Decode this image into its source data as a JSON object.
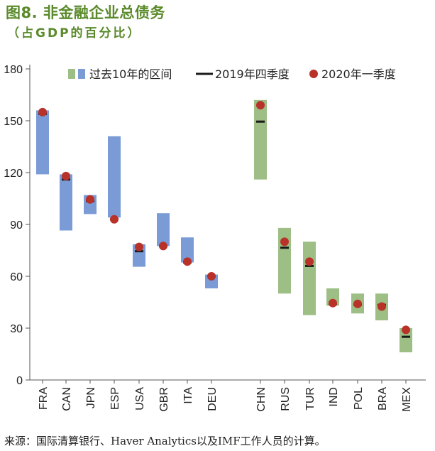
{
  "header": {
    "title": "图8. 非金融企业总债务",
    "subtitle": "（占GDP的百分比）"
  },
  "footer": {
    "source": "来源：国际清算银行、Haver Analytics以及IMF工作人员的计算。"
  },
  "colors": {
    "advanced": "#7b9bd6",
    "emerging": "#9dbe84",
    "marker_2019": "#1a1a1a",
    "marker_2020": "#b8322a",
    "title": "#5a8a2b"
  },
  "chart_data": {
    "type": "range-bar",
    "title": "非金融企业总债务",
    "ylabel": "占GDP的百分比",
    "ylim": [
      0,
      180
    ],
    "yticks": [
      0,
      30,
      60,
      90,
      120,
      150,
      180
    ],
    "legend": {
      "range": "过去10年的区间",
      "q4_2019": "2019年四季度",
      "q1_2020": "2020年一季度",
      "placement": "top"
    },
    "groups": [
      {
        "name": "advanced",
        "categories": [
          "FRA",
          "CAN",
          "JPN",
          "ESP",
          "USA",
          "GBR",
          "ITA",
          "DEU"
        ],
        "range_low": [
          119,
          86.5,
          96,
          94,
          65.5,
          77.5,
          68,
          53
        ],
        "range_high": [
          156,
          119,
          107,
          141,
          78.5,
          96.5,
          82.5,
          61
        ],
        "q4_2019": [
          154,
          116,
          103.5,
          93,
          74.5,
          77.5,
          68,
          60
        ],
        "q1_2020": [
          155,
          118,
          104.5,
          93,
          77,
          77.5,
          68.5,
          60
        ]
      },
      {
        "name": "emerging",
        "categories": [
          "CHN",
          "RUS",
          "TUR",
          "IND",
          "POL",
          "BRA",
          "MEX"
        ],
        "range_low": [
          116,
          50,
          37.5,
          43,
          38.5,
          34.5,
          16
        ],
        "range_high": [
          162,
          88,
          80,
          53,
          50,
          50,
          30
        ],
        "q4_2019": [
          149.5,
          76.5,
          66,
          44,
          43.5,
          43.5,
          25
        ],
        "q1_2020": [
          159,
          80,
          68.5,
          44.5,
          44,
          42.5,
          29
        ]
      }
    ]
  }
}
